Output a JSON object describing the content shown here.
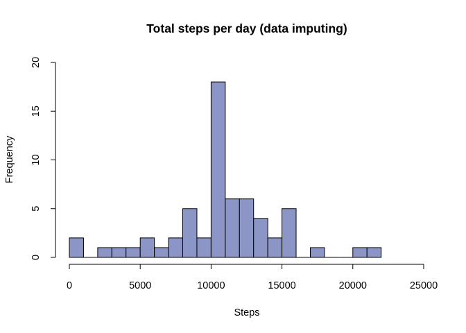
{
  "chart_data": {
    "type": "bar",
    "title": "Total steps per day (data imputing)",
    "xlabel": "Steps",
    "ylabel": "Frequency",
    "bar_color": "#8c96c6",
    "xlim": [
      0,
      25000
    ],
    "ylim": [
      0,
      20
    ],
    "x_ticks": [
      0,
      5000,
      10000,
      15000,
      20000,
      25000
    ],
    "y_ticks": [
      0,
      5,
      10,
      15,
      20
    ],
    "bin_width": 1000,
    "bin_starts": [
      0,
      1000,
      2000,
      3000,
      4000,
      5000,
      6000,
      7000,
      8000,
      9000,
      10000,
      11000,
      12000,
      13000,
      14000,
      15000,
      16000,
      17000,
      18000,
      19000,
      20000,
      21000
    ],
    "values": [
      2,
      0,
      1,
      1,
      1,
      2,
      1,
      2,
      5,
      2,
      18,
      6,
      6,
      4,
      2,
      5,
      0,
      1,
      0,
      0,
      1,
      1
    ]
  }
}
